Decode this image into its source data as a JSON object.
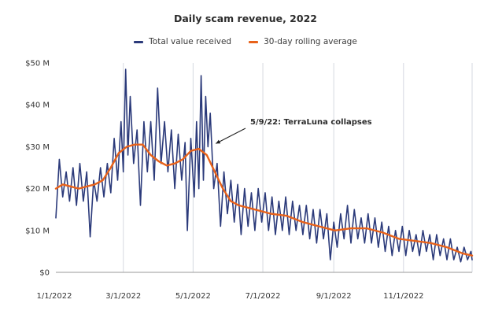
{
  "chart_data": {
    "type": "line",
    "title": "Daily scam revenue, 2022",
    "xlabel": "",
    "ylabel": "",
    "ylim": [
      0,
      50
    ],
    "xlim": [
      "2022-01-01",
      "2022-12-31"
    ],
    "grid": "vertical",
    "legend_position": "top-center",
    "y_ticks": [
      {
        "value": 0,
        "label": "$0"
      },
      {
        "value": 10,
        "label": "$10 M"
      },
      {
        "value": 20,
        "label": "$20 M"
      },
      {
        "value": 30,
        "label": "$30 M"
      },
      {
        "value": 40,
        "label": "$40 M"
      },
      {
        "value": 50,
        "label": "$50 M"
      }
    ],
    "x_ticks": [
      {
        "date": "2022-01-01",
        "label": "1/1/2022"
      },
      {
        "date": "2022-03-01",
        "label": "3/1/2022"
      },
      {
        "date": "2022-05-01",
        "label": "5/1/2022"
      },
      {
        "date": "2022-07-01",
        "label": "7/1/2022"
      },
      {
        "date": "2022-09-01",
        "label": "9/1/2022"
      },
      {
        "date": "2022-11-01",
        "label": "11/1/2022"
      }
    ],
    "series": [
      {
        "name": "Total value received",
        "color": "#2b3a7a",
        "unit": "$M",
        "points": [
          [
            "2022-01-01",
            13
          ],
          [
            "2022-01-04",
            27
          ],
          [
            "2022-01-07",
            18
          ],
          [
            "2022-01-10",
            24
          ],
          [
            "2022-01-13",
            17
          ],
          [
            "2022-01-16",
            25
          ],
          [
            "2022-01-19",
            16
          ],
          [
            "2022-01-22",
            26
          ],
          [
            "2022-01-25",
            17
          ],
          [
            "2022-01-28",
            24
          ],
          [
            "2022-01-31",
            8.5
          ],
          [
            "2022-02-03",
            22
          ],
          [
            "2022-02-06",
            17
          ],
          [
            "2022-02-09",
            25
          ],
          [
            "2022-02-12",
            18
          ],
          [
            "2022-02-15",
            26
          ],
          [
            "2022-02-18",
            19
          ],
          [
            "2022-02-21",
            32
          ],
          [
            "2022-02-24",
            22
          ],
          [
            "2022-02-27",
            36
          ],
          [
            "2022-03-01",
            24
          ],
          [
            "2022-03-03",
            48.5
          ],
          [
            "2022-03-05",
            28
          ],
          [
            "2022-03-07",
            42
          ],
          [
            "2022-03-10",
            26
          ],
          [
            "2022-03-13",
            34
          ],
          [
            "2022-03-16",
            16
          ],
          [
            "2022-03-19",
            36
          ],
          [
            "2022-03-22",
            24
          ],
          [
            "2022-03-25",
            36
          ],
          [
            "2022-03-28",
            22
          ],
          [
            "2022-03-31",
            44
          ],
          [
            "2022-04-03",
            26
          ],
          [
            "2022-04-06",
            36
          ],
          [
            "2022-04-09",
            24
          ],
          [
            "2022-04-12",
            34
          ],
          [
            "2022-04-15",
            20
          ],
          [
            "2022-04-18",
            33
          ],
          [
            "2022-04-21",
            22
          ],
          [
            "2022-04-24",
            31
          ],
          [
            "2022-04-26",
            10
          ],
          [
            "2022-04-29",
            32
          ],
          [
            "2022-05-02",
            18
          ],
          [
            "2022-05-04",
            36
          ],
          [
            "2022-05-06",
            20
          ],
          [
            "2022-05-08",
            47
          ],
          [
            "2022-05-10",
            22
          ],
          [
            "2022-05-12",
            42
          ],
          [
            "2022-05-14",
            30
          ],
          [
            "2022-05-16",
            38
          ],
          [
            "2022-05-19",
            20
          ],
          [
            "2022-05-22",
            26
          ],
          [
            "2022-05-25",
            11
          ],
          [
            "2022-05-28",
            24
          ],
          [
            "2022-05-31",
            14
          ],
          [
            "2022-06-03",
            22
          ],
          [
            "2022-06-06",
            12
          ],
          [
            "2022-06-09",
            21
          ],
          [
            "2022-06-12",
            9
          ],
          [
            "2022-06-15",
            20
          ],
          [
            "2022-06-18",
            11
          ],
          [
            "2022-06-21",
            19
          ],
          [
            "2022-06-24",
            10
          ],
          [
            "2022-06-27",
            20
          ],
          [
            "2022-06-30",
            12
          ],
          [
            "2022-07-03",
            19
          ],
          [
            "2022-07-06",
            10
          ],
          [
            "2022-07-09",
            18
          ],
          [
            "2022-07-12",
            9
          ],
          [
            "2022-07-15",
            17
          ],
          [
            "2022-07-18",
            10
          ],
          [
            "2022-07-21",
            18
          ],
          [
            "2022-07-24",
            9
          ],
          [
            "2022-07-27",
            17
          ],
          [
            "2022-07-30",
            10
          ],
          [
            "2022-08-02",
            16
          ],
          [
            "2022-08-05",
            9
          ],
          [
            "2022-08-08",
            16
          ],
          [
            "2022-08-11",
            8
          ],
          [
            "2022-08-14",
            15
          ],
          [
            "2022-08-17",
            7
          ],
          [
            "2022-08-20",
            15
          ],
          [
            "2022-08-23",
            8
          ],
          [
            "2022-08-26",
            14
          ],
          [
            "2022-08-29",
            3
          ],
          [
            "2022-09-01",
            12
          ],
          [
            "2022-09-04",
            6
          ],
          [
            "2022-09-07",
            14
          ],
          [
            "2022-09-10",
            8
          ],
          [
            "2022-09-13",
            16
          ],
          [
            "2022-09-16",
            7
          ],
          [
            "2022-09-19",
            15
          ],
          [
            "2022-09-22",
            8
          ],
          [
            "2022-09-25",
            13
          ],
          [
            "2022-09-28",
            7
          ],
          [
            "2022-10-01",
            14
          ],
          [
            "2022-10-04",
            7
          ],
          [
            "2022-10-07",
            13
          ],
          [
            "2022-10-10",
            6
          ],
          [
            "2022-10-13",
            12
          ],
          [
            "2022-10-16",
            5
          ],
          [
            "2022-10-19",
            11
          ],
          [
            "2022-10-22",
            4
          ],
          [
            "2022-10-25",
            10
          ],
          [
            "2022-10-28",
            5
          ],
          [
            "2022-10-31",
            11
          ],
          [
            "2022-11-03",
            4
          ],
          [
            "2022-11-06",
            10
          ],
          [
            "2022-11-09",
            5
          ],
          [
            "2022-11-12",
            9
          ],
          [
            "2022-11-15",
            4
          ],
          [
            "2022-11-18",
            10
          ],
          [
            "2022-11-21",
            5
          ],
          [
            "2022-11-24",
            9
          ],
          [
            "2022-11-27",
            3
          ],
          [
            "2022-11-30",
            9
          ],
          [
            "2022-12-03",
            4
          ],
          [
            "2022-12-06",
            8
          ],
          [
            "2022-12-09",
            3
          ],
          [
            "2022-12-12",
            8
          ],
          [
            "2022-12-15",
            3
          ],
          [
            "2022-12-18",
            6
          ],
          [
            "2022-12-21",
            2.5
          ],
          [
            "2022-12-24",
            6
          ],
          [
            "2022-12-27",
            3
          ],
          [
            "2022-12-30",
            5
          ],
          [
            "2022-12-31",
            3
          ]
        ]
      },
      {
        "name": "30-day rolling average",
        "color": "#e8621a",
        "unit": "$M",
        "points": [
          [
            "2022-01-01",
            20
          ],
          [
            "2022-01-07",
            21
          ],
          [
            "2022-01-14",
            20.5
          ],
          [
            "2022-01-21",
            20
          ],
          [
            "2022-01-28",
            20.5
          ],
          [
            "2022-02-04",
            21
          ],
          [
            "2022-02-11",
            22
          ],
          [
            "2022-02-18",
            25
          ],
          [
            "2022-02-25",
            28.5
          ],
          [
            "2022-03-04",
            30
          ],
          [
            "2022-03-11",
            30.5
          ],
          [
            "2022-03-18",
            30.5
          ],
          [
            "2022-03-25",
            28
          ],
          [
            "2022-04-01",
            26.5
          ],
          [
            "2022-04-08",
            25.5
          ],
          [
            "2022-04-15",
            26
          ],
          [
            "2022-04-22",
            27
          ],
          [
            "2022-04-29",
            29
          ],
          [
            "2022-05-06",
            29.5
          ],
          [
            "2022-05-13",
            28
          ],
          [
            "2022-05-20",
            24
          ],
          [
            "2022-05-27",
            20
          ],
          [
            "2022-06-03",
            17
          ],
          [
            "2022-06-10",
            16
          ],
          [
            "2022-06-24",
            15
          ],
          [
            "2022-07-08",
            14
          ],
          [
            "2022-07-22",
            13.5
          ],
          [
            "2022-08-05",
            12
          ],
          [
            "2022-08-19",
            11
          ],
          [
            "2022-09-02",
            10
          ],
          [
            "2022-09-16",
            10.5
          ],
          [
            "2022-09-30",
            10.5
          ],
          [
            "2022-10-14",
            9.5
          ],
          [
            "2022-10-28",
            8
          ],
          [
            "2022-11-11",
            7.5
          ],
          [
            "2022-11-25",
            7
          ],
          [
            "2022-12-09",
            6
          ],
          [
            "2022-12-23",
            4.5
          ],
          [
            "2022-12-31",
            4
          ]
        ]
      }
    ],
    "annotations": [
      {
        "text": "5/9/22: TerraLuna collapses",
        "date": "2022-05-14",
        "value": 30
      }
    ]
  }
}
